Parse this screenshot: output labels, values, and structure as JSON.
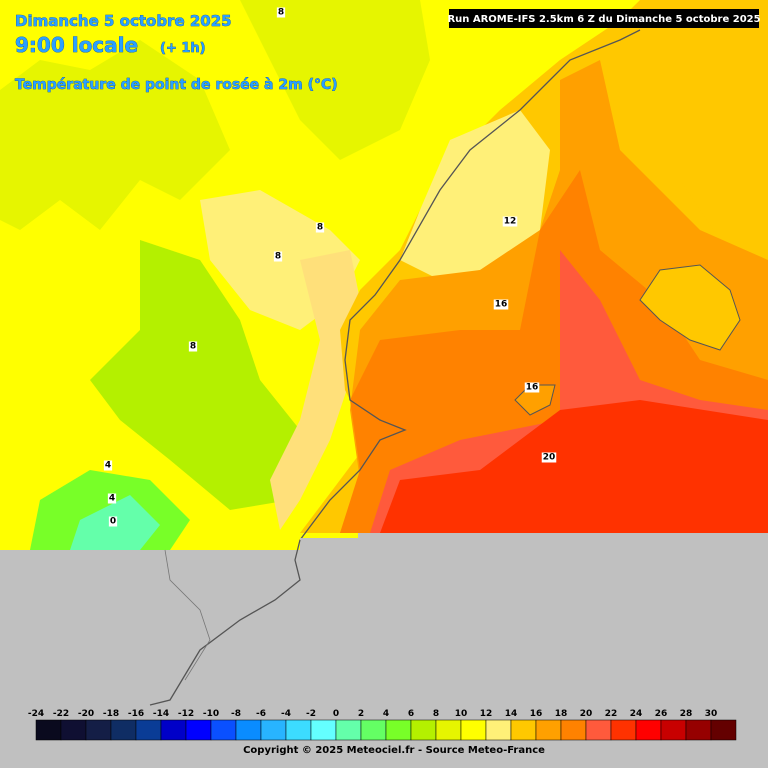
{
  "header": {
    "date": "Dimanche 5 octobre 2025",
    "time": "9:00 locale",
    "lead": "(+ 1h)",
    "field": "Température de point de rosée à 2m (°C)",
    "run": "Run AROME-IFS 2.5km 6 Z du Dimanche 5 octobre 2025"
  },
  "contour_labels": [
    "8",
    "8",
    "8",
    "8",
    "12",
    "16",
    "16",
    "20",
    "4",
    "4",
    "0"
  ],
  "legend": {
    "values": [
      -24,
      -22,
      -20,
      -18,
      -16,
      -14,
      -12,
      -10,
      -8,
      -6,
      -4,
      -2,
      0,
      2,
      4,
      6,
      8,
      10,
      12,
      14,
      16,
      18,
      20,
      22,
      24,
      26,
      28,
      30
    ],
    "colors": [
      "#0a0a1e",
      "#0f0f32",
      "#141e46",
      "#0f2d64",
      "#0a3c96",
      "#0000c8",
      "#0000ff",
      "#0a50ff",
      "#0a8cff",
      "#28b4ff",
      "#3cdcff",
      "#64ffff",
      "#64ffaa",
      "#64ff64",
      "#78ff28",
      "#b4f000",
      "#e6f500",
      "#ffff00",
      "#fff078",
      "#ffc800",
      "#ffa000",
      "#ff8200",
      "#ff5a3c",
      "#ff3200",
      "#ff0000",
      "#c80000",
      "#960000",
      "#640000"
    ]
  },
  "footer": {
    "copyright": "Copyright © 2025 Meteociel.fr - Source Meteo-France"
  }
}
